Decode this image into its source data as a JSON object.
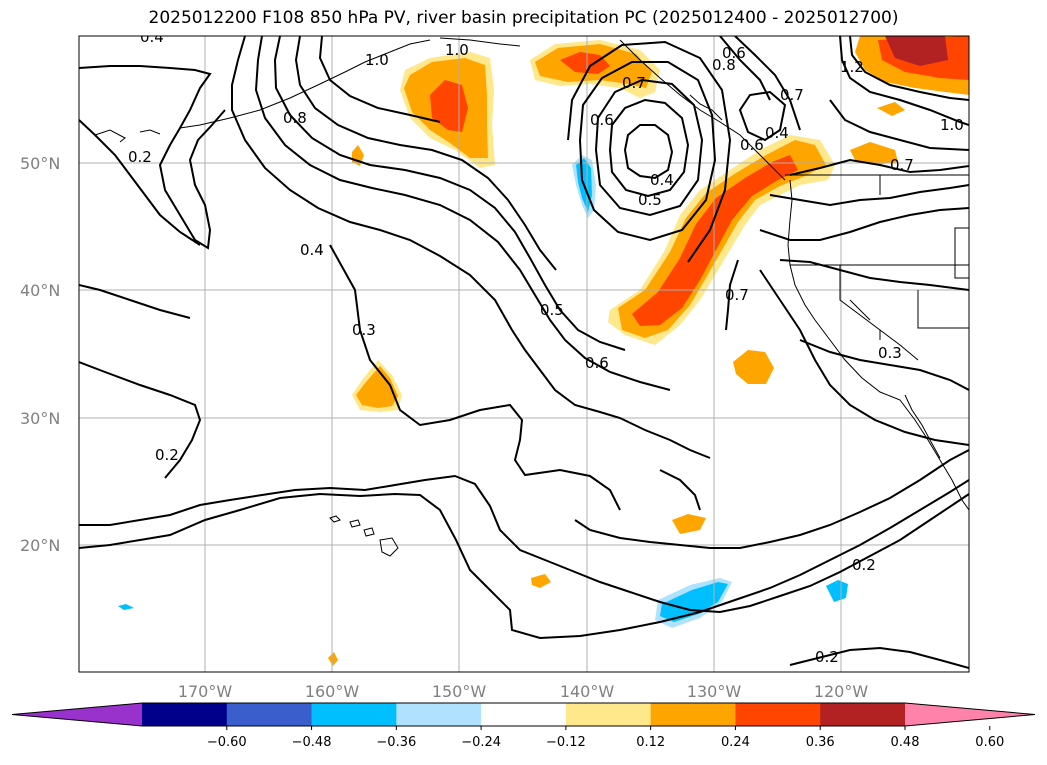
{
  "title": "2025012200 F108 850 hPa PV, river basin precipitation PC (2025012400 - 2025012700)",
  "lat_labels": [
    "50°N",
    "40°N",
    "30°N",
    "20°N"
  ],
  "lon_labels": [
    "170°W",
    "160°W",
    "150°W",
    "140°W",
    "130°W",
    "120°W"
  ],
  "contour_labels": [
    "0.4",
    "1.0",
    "0.6",
    "0.8",
    "0.2",
    "0.8",
    "0.4",
    "0.3",
    "0.2",
    "0.5",
    "0.6",
    "0.7",
    "0.4",
    "0.5",
    "0.7",
    "0.3",
    "0.2",
    "0.2",
    "1.2",
    "1.0",
    "0.7",
    "0.6",
    "0.7",
    "1.0",
    "0.4",
    "0.6"
  ],
  "colorbar": {
    "colors": [
      "#9932cc",
      "#00008b",
      "#3a5fcd",
      "#00bfff",
      "#b0e2ff",
      "#ffffff",
      "#ffe78c",
      "#ffa500",
      "#ff4500",
      "#b22222",
      "#ff82ab"
    ],
    "tick_labels": [
      "−0.60",
      "−0.48",
      "−0.36",
      "−0.24",
      "−0.12",
      "0.12",
      "0.24",
      "0.36",
      "0.48",
      "0.60"
    ]
  }
}
